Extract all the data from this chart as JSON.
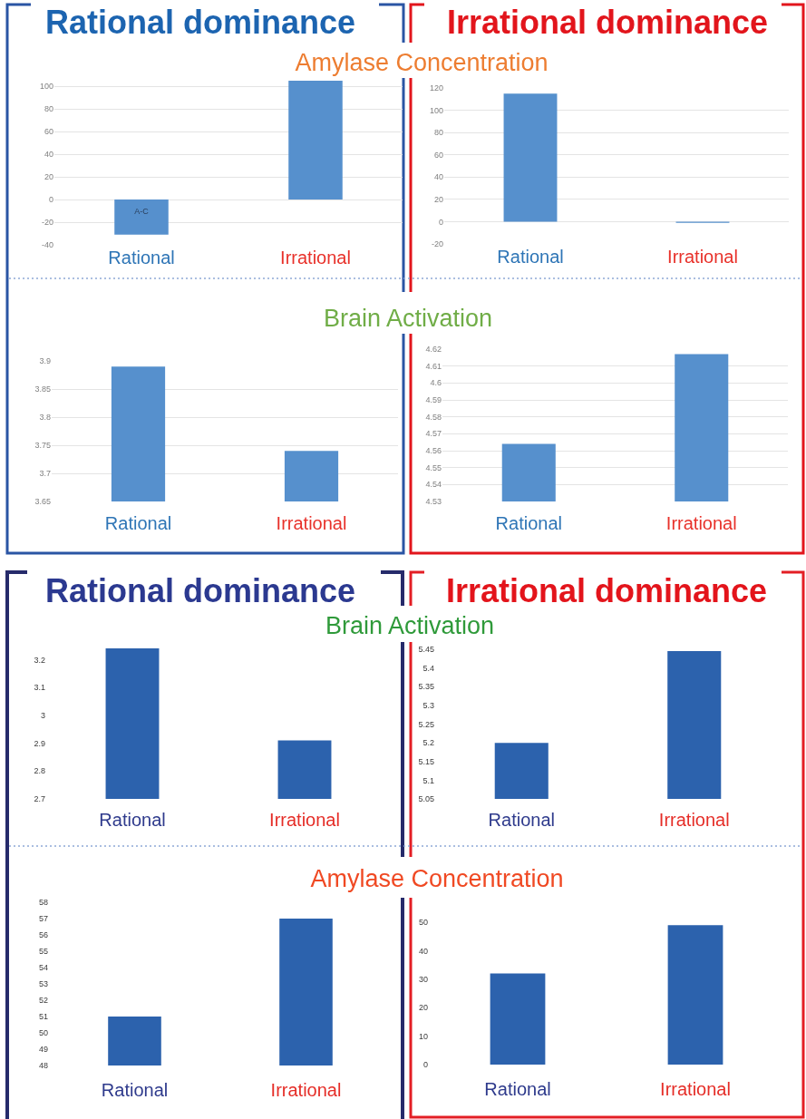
{
  "chart_data": [
    {
      "type": "bar",
      "title": "Amylase Concentration",
      "annotations": [
        "Rational dominance",
        "A-C"
      ],
      "categories": [
        "Rational",
        "Irrational"
      ],
      "values": [
        -31,
        105
      ],
      "color": "#5690cd",
      "ylim": [
        -40,
        105
      ],
      "yticks": [
        -40,
        -20,
        0,
        20,
        40,
        60,
        80,
        100
      ],
      "grid": "y"
    },
    {
      "type": "bar",
      "annotations": [
        "Irrational dominance"
      ],
      "categories": [
        "Rational",
        "Irrational"
      ],
      "values": [
        115,
        -1
      ],
      "color": "#5690cd",
      "ylim": [
        -20,
        120
      ],
      "yticks": [
        -20,
        0,
        20,
        40,
        60,
        80,
        100,
        120
      ],
      "grid": "y"
    },
    {
      "type": "bar",
      "title": "Brain Activation",
      "categories": [
        "Rational",
        "Irrational"
      ],
      "values": [
        3.89,
        3.74
      ],
      "color": "#5690cd",
      "ylim": [
        3.65,
        3.9
      ],
      "yticks": [
        3.65,
        3.7,
        3.75,
        3.8,
        3.85,
        3.9
      ],
      "grid": "y"
    },
    {
      "type": "bar",
      "categories": [
        "Rational",
        "Irrational"
      ],
      "values": [
        4.564,
        4.617
      ],
      "color": "#5690cd",
      "ylim": [
        4.53,
        4.62
      ],
      "yticks": [
        4.53,
        4.54,
        4.55,
        4.56,
        4.57,
        4.58,
        4.59,
        4.6,
        4.61,
        4.62
      ],
      "grid": "y"
    },
    {
      "type": "bar",
      "title": "Brain Activation",
      "annotations": [
        "Rational dominance"
      ],
      "categories": [
        "Rational",
        "Irrational"
      ],
      "values": [
        3.24,
        2.91
      ],
      "color": "#2c62ad",
      "ylim": [
        2.7,
        3.25
      ],
      "yticks": [
        2.7,
        2.8,
        2.9,
        3,
        3.1,
        3.2
      ]
    },
    {
      "type": "bar",
      "annotations": [
        "Irrational dominance"
      ],
      "categories": [
        "Rational",
        "Irrational"
      ],
      "values": [
        5.2,
        5.445
      ],
      "color": "#2c62ad",
      "ylim": [
        5.05,
        5.45
      ],
      "yticks": [
        5.05,
        5.1,
        5.15,
        5.2,
        5.25,
        5.3,
        5.35,
        5.4,
        5.45
      ]
    },
    {
      "type": "bar",
      "title": "Amylase Concentration",
      "categories": [
        "Rational",
        "Irrational"
      ],
      "values": [
        51,
        57
      ],
      "color": "#2c62ad",
      "ylim": [
        48,
        58
      ],
      "yticks": [
        48,
        49,
        50,
        51,
        52,
        53,
        54,
        55,
        56,
        57,
        58
      ]
    },
    {
      "type": "bar",
      "categories": [
        "Rational",
        "Irrational"
      ],
      "values": [
        32,
        49
      ],
      "color": "#2c62ad",
      "ylim": [
        0,
        50
      ],
      "yticks": [
        0,
        10,
        20,
        30,
        40,
        50
      ]
    }
  ]
}
